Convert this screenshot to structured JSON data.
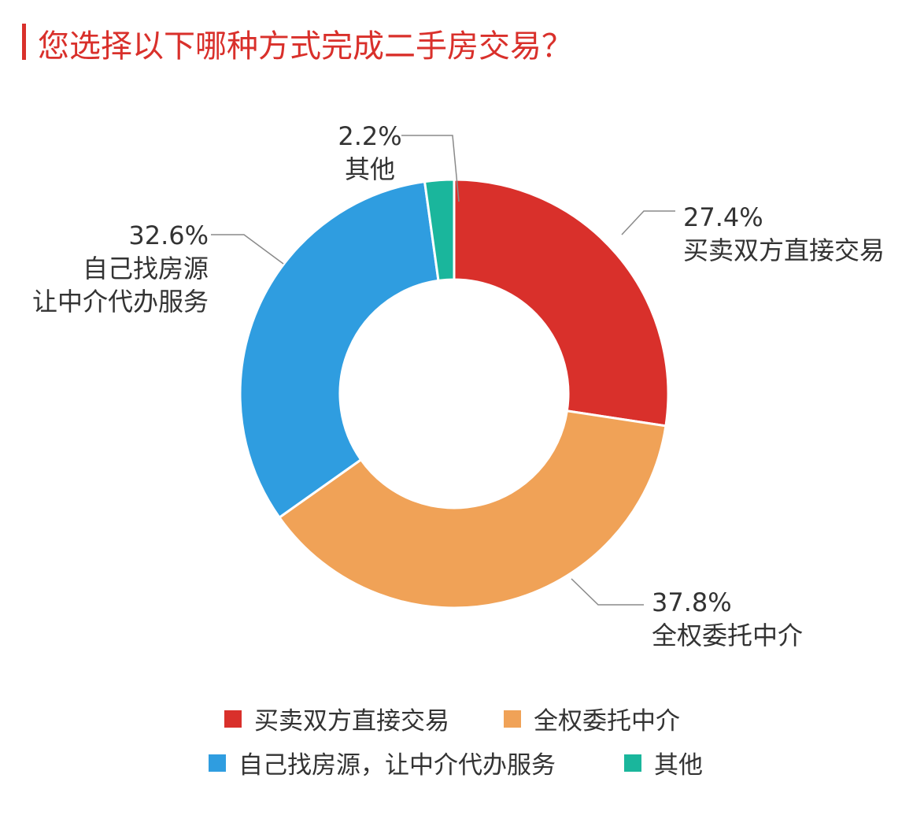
{
  "title": "您选择以下哪种方式完成二手房交易？",
  "colors": {
    "accent": "#d9302b",
    "red": "#d9302b",
    "orange": "#f0a257",
    "blue": "#2f9de0",
    "teal": "#1ab69c"
  },
  "chart_data": {
    "type": "pie",
    "donut": true,
    "title": "您选择以下哪种方式完成二手房交易？",
    "slices": [
      {
        "name": "买卖双方直接交易",
        "value": 27.4,
        "label": "27.4%",
        "color": "#d9302b",
        "label_lines": [
          "买卖双方直接交易"
        ]
      },
      {
        "name": "全权委托中介",
        "value": 37.8,
        "label": "37.8%",
        "color": "#f0a257",
        "label_lines": [
          "全权委托中介"
        ]
      },
      {
        "name": "自己找房源，让中介代办服务",
        "value": 32.6,
        "label": "32.6%",
        "color": "#2f9de0",
        "label_lines": [
          "自己找房源",
          "让中介代办服务"
        ]
      },
      {
        "name": "其他",
        "value": 2.2,
        "label": "2.2%",
        "color": "#1ab69c",
        "label_lines": [
          "其他"
        ]
      }
    ],
    "legend": {
      "placement": "bottom",
      "items": [
        "买卖双方直接交易",
        "全权委托中介",
        "自己找房源，让中介代办服务",
        "其他"
      ]
    }
  }
}
